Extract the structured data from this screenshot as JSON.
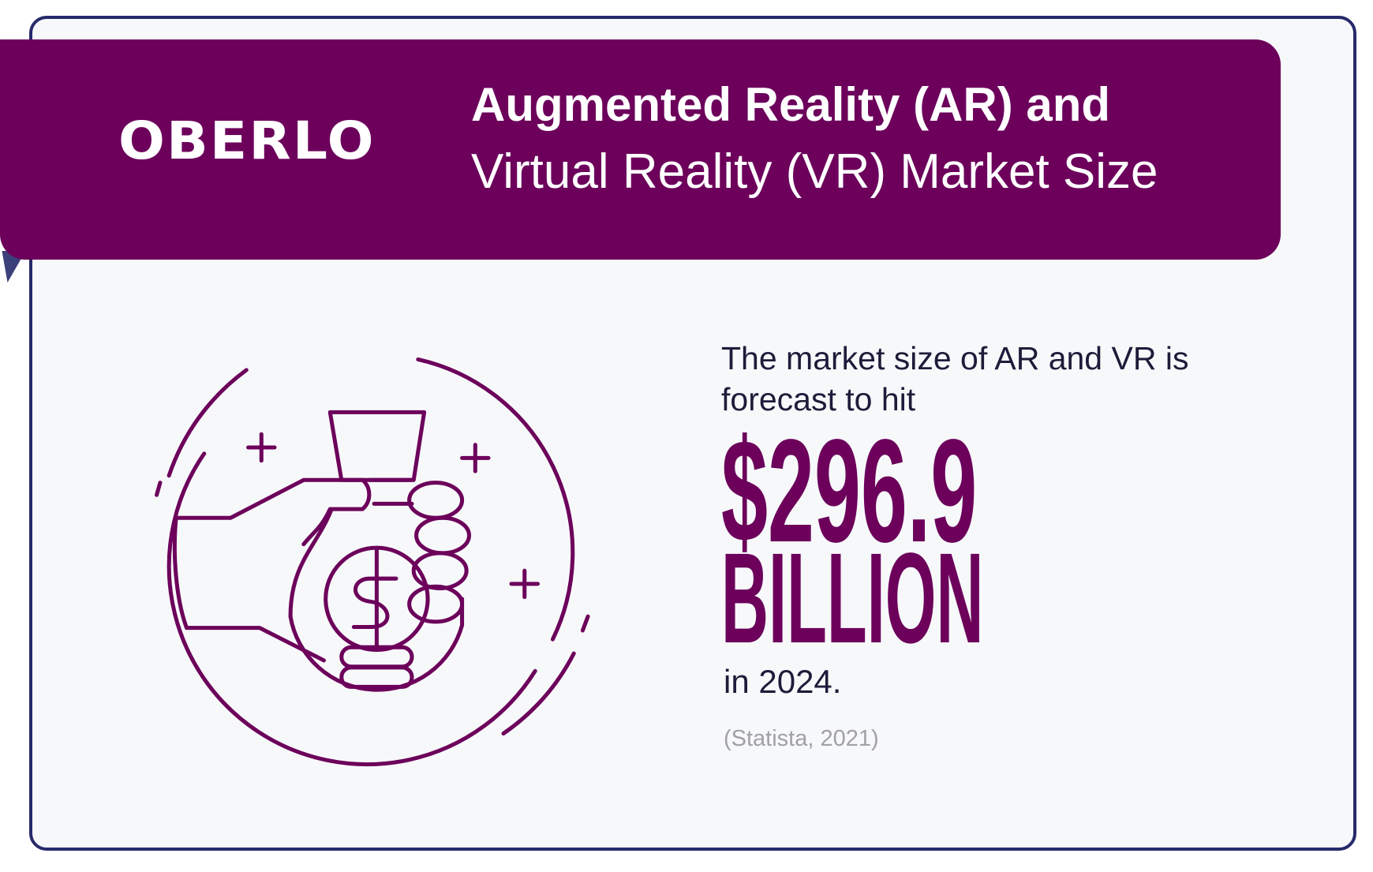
{
  "brand": {
    "logo_text": "OBERLO",
    "accent_color": "#6c005b",
    "border_color": "#262a6b"
  },
  "header": {
    "title_line1": "Augmented Reality (AR) and",
    "title_line2": "Virtual Reality (VR) Market Size"
  },
  "stat": {
    "lead": "The market size of AR and VR is forecast to hit",
    "value": "$296.9",
    "unit": "BILLION",
    "suffix": "in 2024.",
    "source": "(Statista, 2021)"
  },
  "illustration": {
    "icon": "hand-holding-money-bag-icon"
  }
}
